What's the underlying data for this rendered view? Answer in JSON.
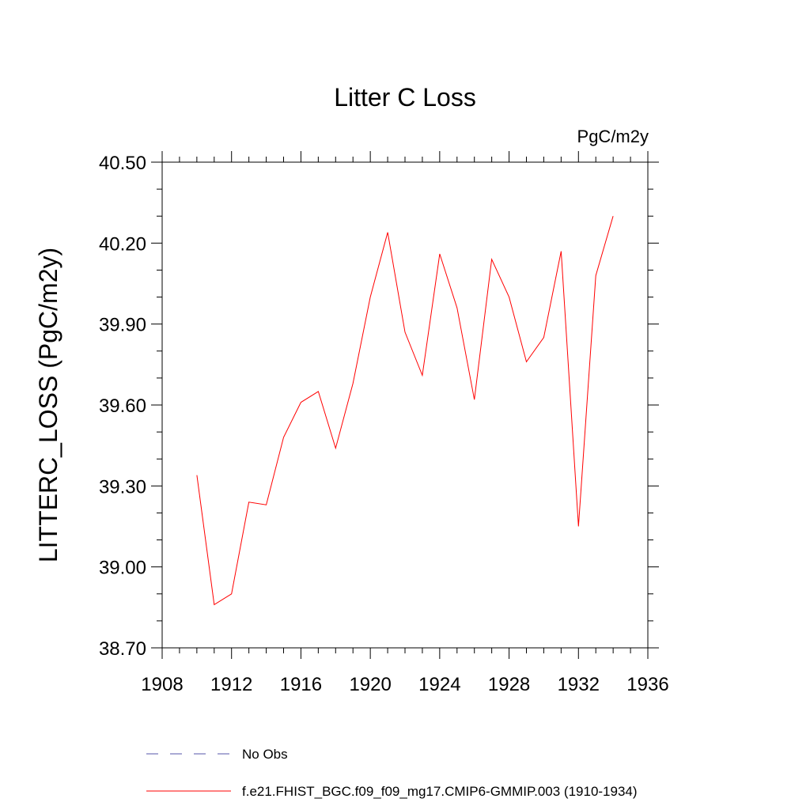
{
  "chart_data": {
    "type": "line",
    "title": "Litter C Loss",
    "units_label": "PgC/m2y",
    "ylabel": "LITTERC_LOSS  (PgC/m2y)",
    "xlabel": "",
    "xlim": [
      1908,
      1936
    ],
    "ylim": [
      38.7,
      40.5
    ],
    "x_ticks": [
      1908,
      1912,
      1916,
      1920,
      1924,
      1928,
      1932,
      1936
    ],
    "x_tick_labels": [
      "1908",
      "1912",
      "1916",
      "1920",
      "1924",
      "1928",
      "1932",
      "1936"
    ],
    "y_ticks": [
      38.7,
      39.0,
      39.3,
      39.6,
      39.9,
      40.2,
      40.5
    ],
    "y_tick_labels": [
      "38.70",
      "39.00",
      "39.30",
      "39.60",
      "39.90",
      "40.20",
      "40.50"
    ],
    "grid": false,
    "series": [
      {
        "name": "f.e21.FHIST_BGC.f09_f09_mg17.CMIP6-GMMIP.003 (1910-1934)",
        "color": "#ff0000",
        "x": [
          1910,
          1911,
          1912,
          1913,
          1914,
          1915,
          1916,
          1917,
          1918,
          1919,
          1920,
          1921,
          1922,
          1923,
          1924,
          1925,
          1926,
          1927,
          1928,
          1929,
          1930,
          1931,
          1932,
          1933,
          1934
        ],
        "y": [
          39.34,
          38.86,
          38.9,
          39.24,
          39.23,
          39.48,
          39.61,
          39.65,
          39.44,
          39.68,
          40.0,
          40.24,
          39.87,
          39.71,
          40.16,
          39.96,
          39.62,
          40.14,
          40.0,
          39.76,
          39.85,
          40.17,
          39.15,
          40.08,
          40.3
        ]
      }
    ],
    "legend": {
      "placement": "bottom",
      "entries": [
        {
          "label": "No Obs",
          "color": "#5555aa",
          "style": "dashed"
        },
        {
          "label": "f.e21.FHIST_BGC.f09_f09_mg17.CMIP6-GMMIP.003 (1910-1934)",
          "color": "#ff0000",
          "style": "solid"
        }
      ]
    }
  }
}
